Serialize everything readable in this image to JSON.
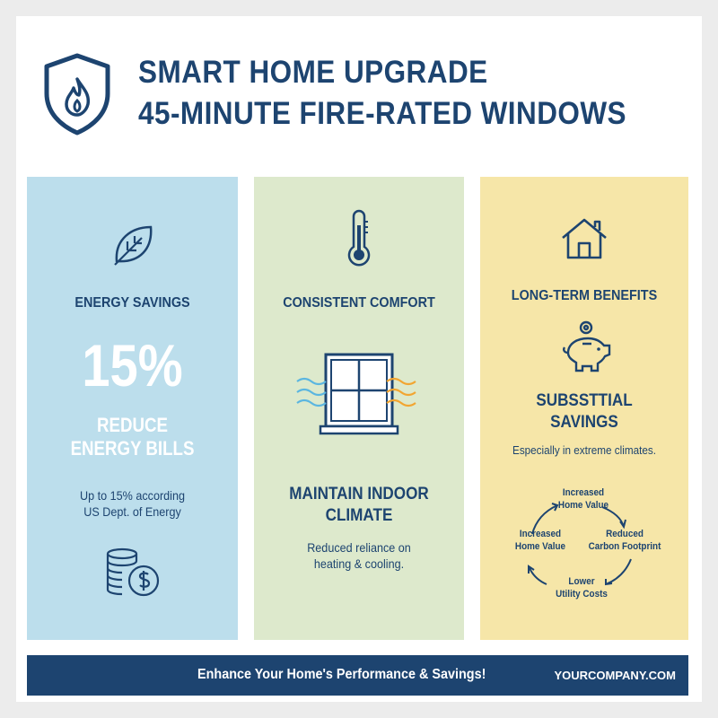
{
  "header": {
    "title_line1": "SMART HOME UPGRADE",
    "title_line2": "45-MINUTE FIRE-RATED WINDOWS",
    "icon": "shield-flame-icon"
  },
  "colors": {
    "navy": "#1d4470",
    "blue_panel": "#bcdeec",
    "green_panel": "#dde9cc",
    "yellow_panel": "#f6e6a8"
  },
  "panels": [
    {
      "icon": "leaf-icon",
      "heading": "ENERGY SAVINGS",
      "stat": "15%",
      "stat_label_1": "REDUCE",
      "stat_label_2": "ENERGY BILLS",
      "note_1": "Up to 15% according",
      "note_2": "US Dept. of Energy",
      "bottom_icon": "coins-dollar-icon"
    },
    {
      "icon": "thermometer-icon",
      "heading": "CONSISTENT COMFORT",
      "illustration": "window-airflow-icon",
      "subheading_1": "MAINTAIN INDOOR",
      "subheading_2": "CLIMATE",
      "note_1": "Reduced reliance on",
      "note_2": "heating & cooling."
    },
    {
      "icon": "house-icon",
      "heading": "LONG-TERM BENEFITS",
      "illustration": "piggy-bank-icon",
      "subheading_1": "SUBSSTTIAL",
      "subheading_2": "SAVINGS",
      "note": "Especially in extreme climates.",
      "cycle": [
        {
          "l1": "Increased",
          "l2": "Home Value"
        },
        {
          "l1": "Reduced",
          "l2": "Carbon Footprint"
        },
        {
          "l1": "Lower",
          "l2": "Utility Costs"
        },
        {
          "l1": "Increased",
          "l2": "Home Value"
        }
      ]
    }
  ],
  "footer": {
    "tagline": "Enhance Your Home's Performance & Savings!",
    "website": "YOURCOMPANY.COM"
  }
}
